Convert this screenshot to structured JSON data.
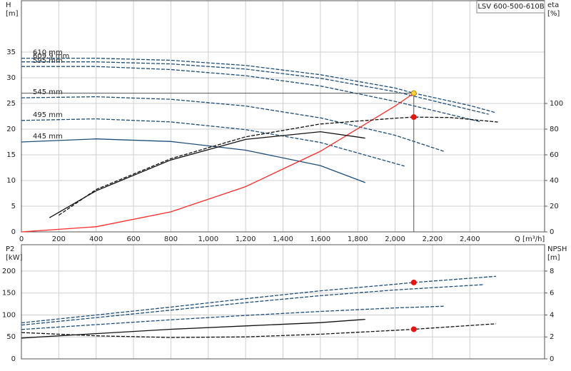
{
  "chart_data": [
    {
      "type": "line",
      "title": "LSV 600-500-610B",
      "ylabel": [
        "H",
        "[m]"
      ],
      "y2label": [
        "eta",
        "[%]"
      ],
      "xlabel": "Q [m³/h]",
      "xlim": [
        0,
        2800
      ],
      "xticks": [
        0,
        200,
        400,
        600,
        800,
        {
          "value": 1000,
          "label": "1,000"
        },
        {
          "value": 1200,
          "label": "1,200"
        },
        {
          "value": 1400,
          "label": "1,400"
        },
        {
          "value": 1600,
          "label": "1,600"
        },
        {
          "value": 1800,
          "label": "1,800"
        },
        {
          "value": 2000,
          "label": "2,000"
        },
        {
          "value": 2200,
          "label": "2,200"
        },
        {
          "value": 2400,
          "label": "2,400"
        }
      ],
      "ylim": [
        0,
        45
      ],
      "yticks": [
        0,
        5,
        10,
        15,
        20,
        25,
        30,
        35
      ],
      "y2lim": [
        0,
        180
      ],
      "y2ticks": [
        0,
        20,
        40,
        60,
        80,
        100
      ],
      "grid": true,
      "series": [
        {
          "name": "610 mm",
          "color": "#1f4e79",
          "style": "dashed",
          "x": [
            0,
            400,
            800,
            1200,
            1600,
            2000,
            2100,
            2400,
            2540
          ],
          "values": [
            33.8,
            33.8,
            33.4,
            32.4,
            30.6,
            28.0,
            27.0,
            24.6,
            23.2
          ]
        },
        {
          "name": "609.9 mm",
          "color": "#1f4e79",
          "style": "dashed",
          "x": [
            0,
            400,
            800,
            1200,
            1600,
            2000,
            2500
          ],
          "values": [
            33.1,
            33.1,
            32.7,
            31.7,
            29.9,
            27.3,
            22.9
          ]
        },
        {
          "name": "595 mm",
          "color": "#1f4e79",
          "style": "dashed",
          "x": [
            0,
            400,
            800,
            1200,
            1600,
            2000,
            2460
          ],
          "values": [
            32.2,
            32.2,
            31.6,
            30.4,
            28.4,
            25.4,
            21.4
          ]
        },
        {
          "name": "545 mm",
          "color": "#1f4e79",
          "style": "dashed",
          "x": [
            0,
            400,
            800,
            1200,
            1600,
            2000,
            2260
          ],
          "values": [
            26.1,
            26.3,
            25.8,
            24.5,
            22.2,
            18.8,
            15.7
          ]
        },
        {
          "name": "495 mm",
          "color": "#1f4e79",
          "style": "dashed",
          "x": [
            0,
            400,
            800,
            1200,
            1600,
            2050
          ],
          "values": [
            21.7,
            22.0,
            21.4,
            19.9,
            17.4,
            12.8
          ]
        },
        {
          "name": "445 mm",
          "color": "#1f4e79",
          "style": "solid",
          "x": [
            0,
            400,
            800,
            1200,
            1600,
            1840
          ],
          "values": [
            17.5,
            18.1,
            17.6,
            15.9,
            12.9,
            9.6
          ]
        },
        {
          "color": "#ff2a2a",
          "style": "solid",
          "x": [
            0,
            400,
            800,
            1200,
            1600,
            2000,
            2100
          ],
          "values": [
            0,
            1.0,
            3.9,
            8.8,
            15.7,
            24.5,
            27.0
          ]
        },
        {
          "color": "#111111",
          "style": "dashed",
          "axis": "y2",
          "x": [
            200,
            400,
            800,
            1200,
            1600,
            2000,
            2100,
            2300,
            2550
          ],
          "values": [
            13,
            33,
            57,
            74,
            84,
            88.5,
            89.4,
            89,
            85.5
          ]
        },
        {
          "color": "#111111",
          "style": "solid",
          "axis": "y2",
          "x": [
            150,
            400,
            800,
            1200,
            1600,
            1840
          ],
          "values": [
            11,
            32,
            56,
            72,
            78,
            73
          ]
        }
      ],
      "markers": [
        {
          "x": 2100,
          "y": 27,
          "color": "#ffd23f",
          "guides": true
        },
        {
          "x": 2100,
          "y": 89.4,
          "axis": "y2",
          "color": "#e8140f"
        }
      ]
    },
    {
      "type": "line",
      "ylabel": [
        "P2",
        "[kW]"
      ],
      "y2label": [
        "NPSH",
        "[m]"
      ],
      "xlim": [
        0,
        2800
      ],
      "xticks": [
        0,
        200,
        400,
        600,
        800,
        1000,
        1200,
        1400,
        1600,
        1800,
        2000,
        2200,
        2400
      ],
      "ylim": [
        0,
        260
      ],
      "yticks": [
        0,
        50,
        100,
        150,
        200
      ],
      "y2lim": [
        0,
        10.4
      ],
      "y2ticks": [
        0,
        2,
        4,
        6,
        8
      ],
      "grid": true,
      "series": [
        {
          "color": "#1f4e79",
          "style": "dashed",
          "x": [
            0,
            400,
            800,
            1200,
            1600,
            2000,
            2100,
            2540
          ],
          "values": [
            82,
            100,
            118,
            137,
            155,
            170,
            174,
            188
          ]
        },
        {
          "color": "#1f4e79",
          "style": "dashed",
          "x": [
            0,
            400,
            800,
            1200,
            1600,
            2000,
            2470
          ],
          "values": [
            77,
            94,
            111,
            128,
            144,
            157,
            169
          ]
        },
        {
          "color": "#1f4e79",
          "style": "dashed",
          "x": [
            0,
            400,
            800,
            1200,
            1600,
            2000,
            2260
          ],
          "values": [
            67,
            78,
            89,
            99,
            108,
            116,
            120
          ]
        },
        {
          "color": "#111111",
          "style": "dashed",
          "axis": "y2",
          "x": [
            0,
            400,
            800,
            1200,
            1600,
            2000,
            2100,
            2540
          ],
          "values": [
            2.4,
            2.1,
            1.95,
            2.0,
            2.25,
            2.6,
            2.7,
            3.2
          ]
        },
        {
          "color": "#111111",
          "style": "solid",
          "axis": "y2",
          "x": [
            0,
            400,
            800,
            1200,
            1600,
            1840
          ],
          "values": [
            1.9,
            2.3,
            2.7,
            3.0,
            3.3,
            3.6
          ]
        }
      ],
      "markers": [
        {
          "x": 2100,
          "y": 174,
          "color": "#e8140f"
        },
        {
          "x": 2100,
          "y": 2.7,
          "axis": "y2",
          "color": "#e8140f"
        }
      ]
    }
  ]
}
